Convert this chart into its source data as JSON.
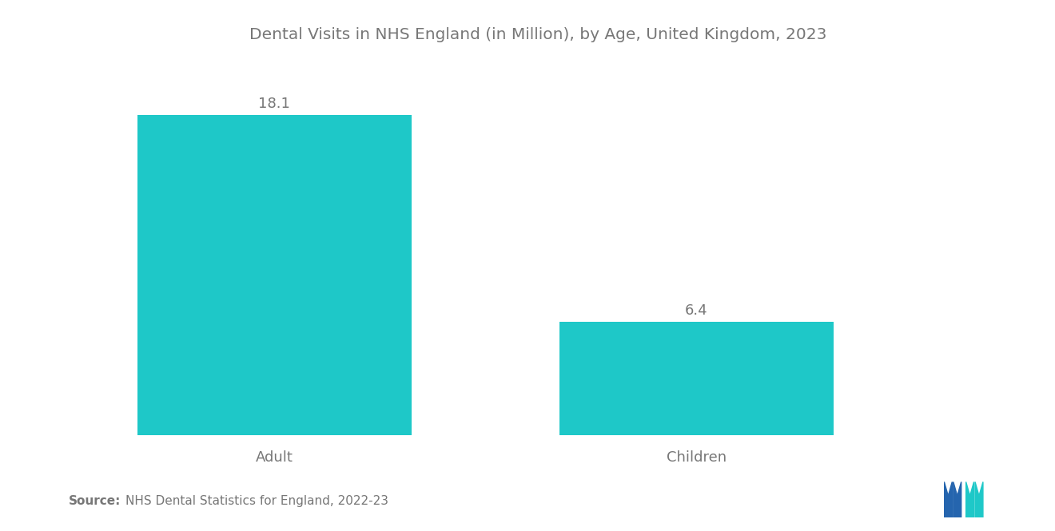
{
  "title": "Dental Visits in NHS England (in Million), by Age, United Kingdom, 2023",
  "categories": [
    "Adult",
    "Children"
  ],
  "values": [
    18.1,
    6.4
  ],
  "bar_color": "#1EC8C8",
  "value_labels": [
    "18.1",
    "6.4"
  ],
  "source_bold": "Source:",
  "source_text": "NHS Dental Statistics for England, 2022-23",
  "title_fontsize": 14.5,
  "label_fontsize": 13,
  "value_fontsize": 13,
  "source_fontsize": 11,
  "background_color": "#ffffff",
  "text_color": "#777777",
  "ylim": [
    0,
    21
  ],
  "bar_positions": [
    1,
    3
  ],
  "bar_width": 1.3,
  "xlim": [
    0,
    4.5
  ]
}
